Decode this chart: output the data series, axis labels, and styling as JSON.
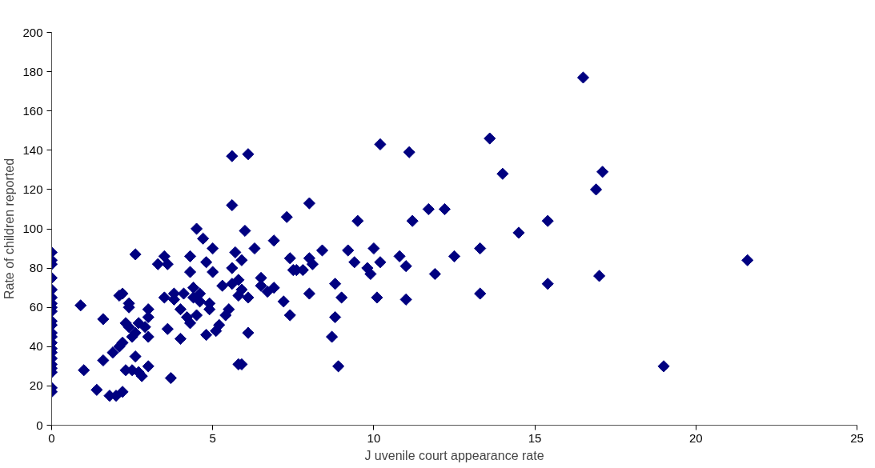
{
  "chart_data": {
    "type": "scatter",
    "xlabel": "J uvenile court appearance rate",
    "ylabel": "Rate of children reported",
    "marker": "diamond",
    "grid": false,
    "xlim": [
      0,
      25
    ],
    "xticks": [
      0,
      5,
      10,
      15,
      20,
      25
    ],
    "ylim": [
      0,
      200
    ],
    "yticks": [
      0,
      20,
      40,
      60,
      80,
      100,
      120,
      140,
      160,
      180,
      200
    ],
    "series": [
      {
        "color": "#000080",
        "x": [
          0,
          0,
          0,
          0,
          0,
          0,
          0,
          0,
          0,
          0,
          0,
          0,
          0,
          0,
          0,
          0,
          0,
          0,
          0,
          0,
          0,
          0,
          0.9,
          1.0,
          1.4,
          1.6,
          1.6,
          1.8,
          1.9,
          2.0,
          2.1,
          2.1,
          2.2,
          2.2,
          2.2,
          2.3,
          2.3,
          2.4,
          2.4,
          2.4,
          2.5,
          2.5,
          2.6,
          2.6,
          2.6,
          2.7,
          2.7,
          2.8,
          2.9,
          3.0,
          3.0,
          3.0,
          3.0,
          3.3,
          3.5,
          3.5,
          3.6,
          3.6,
          3.7,
          3.8,
          3.8,
          4.0,
          4.0,
          4.1,
          4.2,
          4.3,
          4.3,
          4.3,
          4.4,
          4.4,
          4.5,
          4.5,
          4.6,
          4.6,
          4.7,
          4.8,
          4.8,
          4.9,
          4.9,
          5.0,
          5.0,
          5.1,
          5.2,
          5.3,
          5.4,
          5.5,
          5.6,
          5.6,
          5.6,
          5.6,
          5.7,
          5.8,
          5.8,
          5.8,
          5.9,
          5.9,
          5.9,
          6.0,
          6.1,
          6.1,
          6.1,
          6.3,
          6.5,
          6.5,
          6.7,
          6.9,
          6.9,
          7.2,
          7.3,
          7.4,
          7.4,
          7.5,
          7.6,
          7.8,
          8.0,
          8.0,
          8.0,
          8.1,
          8.4,
          8.7,
          8.8,
          8.8,
          8.9,
          9.0,
          9.2,
          9.4,
          9.5,
          9.8,
          9.9,
          10.0,
          10.1,
          10.2,
          10.2,
          10.8,
          11.0,
          11.0,
          11.1,
          11.2,
          11.7,
          11.9,
          12.2,
          12.5,
          13.3,
          13.3,
          13.6,
          14.0,
          14.5,
          15.4,
          15.4,
          16.5,
          16.9,
          17.0,
          17.1,
          19.0,
          21.6
        ],
        "values": [
          88,
          84,
          82,
          75,
          69,
          65,
          62,
          60,
          58,
          53,
          51,
          47,
          45,
          42,
          39,
          37,
          34,
          31,
          29,
          27,
          19,
          17,
          61,
          28,
          18,
          54,
          33,
          15,
          37,
          15,
          40,
          66,
          42,
          17,
          67,
          52,
          28,
          62,
          60,
          50,
          45,
          28,
          87,
          47,
          35,
          27,
          52,
          25,
          50,
          55,
          59,
          30,
          45,
          82,
          86,
          65,
          49,
          82,
          24,
          67,
          64,
          59,
          44,
          67,
          55,
          52,
          78,
          86,
          70,
          65,
          56,
          100,
          63,
          67,
          95,
          83,
          46,
          59,
          62,
          78,
          90,
          48,
          51,
          71,
          56,
          59,
          72,
          80,
          112,
          137,
          88,
          66,
          74,
          31,
          69,
          31,
          84,
          99,
          138,
          65,
          47,
          90,
          71,
          75,
          68,
          70,
          94,
          63,
          106,
          56,
          85,
          79,
          79,
          79,
          113,
          67,
          85,
          82,
          89,
          45,
          72,
          55,
          30,
          65,
          89,
          83,
          104,
          80,
          77,
          90,
          65,
          83,
          143,
          86,
          81,
          64,
          139,
          104,
          110,
          77,
          110,
          86,
          90,
          67,
          146,
          128,
          98,
          104,
          72,
          177,
          120,
          76,
          129,
          30,
          84
        ]
      }
    ]
  }
}
